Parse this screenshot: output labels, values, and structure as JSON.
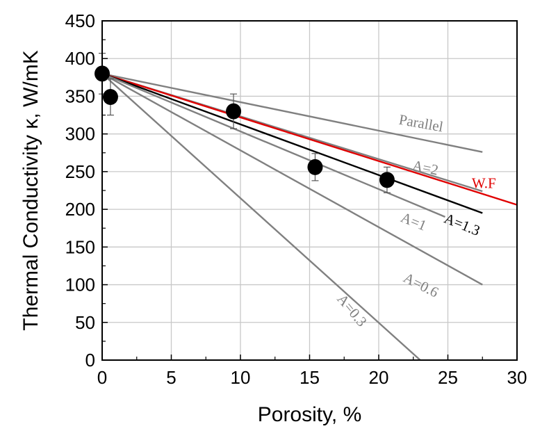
{
  "chart_data": {
    "type": "line",
    "title": "",
    "xlabel": "Porosity, %",
    "ylabel": "Thermal Conductivity κ, W/mK",
    "xlim": [
      0,
      30
    ],
    "ylim": [
      0,
      450
    ],
    "xticks": [
      "0",
      "5",
      "10",
      "15",
      "20",
      "25",
      "30"
    ],
    "yticks": [
      "0",
      "50",
      "100",
      "150",
      "200",
      "250",
      "300",
      "350",
      "400",
      "450"
    ],
    "grid": true,
    "legend": "none",
    "colors": {
      "model_line": "#808080",
      "wf_line": "#e00000",
      "fit_line": "#000000",
      "points": "#000000"
    },
    "series": [
      {
        "name": "Parallel",
        "color": "#808080",
        "x": [
          0,
          27.5
        ],
        "y": [
          380,
          276
        ],
        "label_x": 23,
        "label_y": 308,
        "label_rot": 10
      },
      {
        "name": "A=2",
        "color": "#808080",
        "x": [
          0,
          27.5
        ],
        "y": [
          380,
          224
        ],
        "label_x": 23.3,
        "label_y": 249,
        "label_rot": 12
      },
      {
        "name": "W.F",
        "color": "#e00000",
        "x": [
          0,
          30
        ],
        "y": [
          380,
          206
        ],
        "label_x": 27.6,
        "label_y": 228,
        "label_rot": 0
      },
      {
        "name": "A=1.3",
        "color": "#000000",
        "x": [
          0,
          27.5
        ],
        "y": [
          380,
          195
        ],
        "label_x": 25.9,
        "label_y": 174,
        "label_rot": 22
      },
      {
        "name": "A=1",
        "color": "#808080",
        "x": [
          0,
          24.8
        ],
        "y": [
          380,
          190
        ],
        "label_x": 22.4,
        "label_y": 178,
        "label_rot": 22
      },
      {
        "name": "A=0.6",
        "color": "#808080",
        "x": [
          0,
          27.5
        ],
        "y": [
          380,
          100
        ],
        "label_x": 22.9,
        "label_y": 94,
        "label_rot": 27
      },
      {
        "name": "A=0.3",
        "color": "#808080",
        "x": [
          0,
          23
        ],
        "y": [
          380,
          0
        ],
        "label_x": 17.8,
        "label_y": 62,
        "label_rot": 50
      }
    ],
    "points": {
      "x": [
        0,
        0.6,
        9.5,
        15.4,
        20.6
      ],
      "y": [
        380,
        349,
        330,
        256,
        239
      ],
      "err": [
        27,
        24,
        23,
        18,
        17
      ]
    }
  }
}
